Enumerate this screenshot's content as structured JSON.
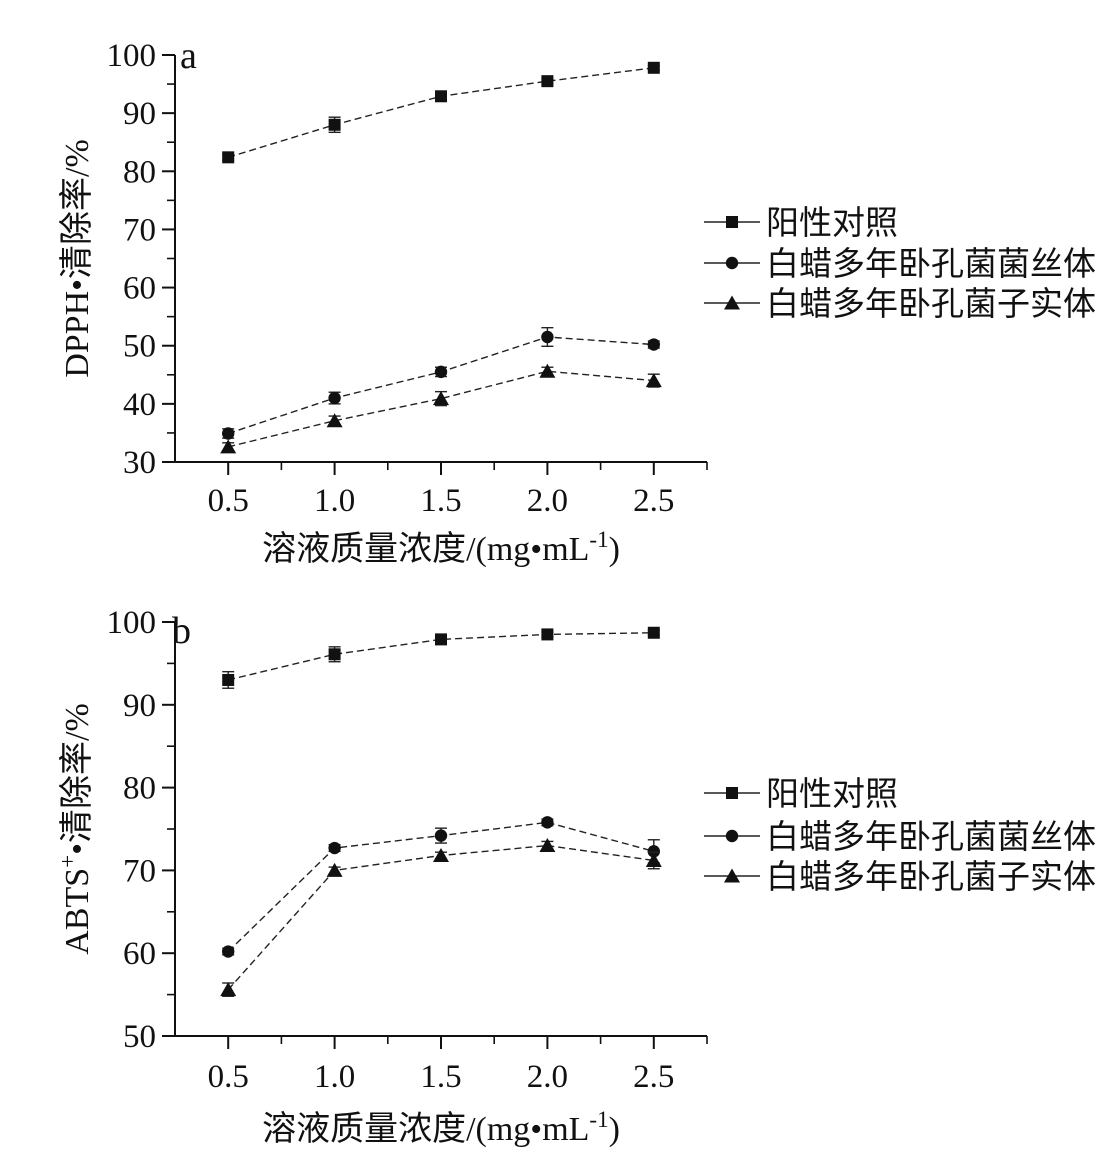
{
  "figure": {
    "background": "#ffffff",
    "ink": "#111111",
    "line_color": "#222222"
  },
  "chart_data": [
    {
      "type": "line",
      "panel_label": "a",
      "title": "",
      "xlabel": "溶液质量浓度/(mg•mL-1)",
      "xlabel_parts": {
        "pre": "溶液质量浓度/(mg•mL",
        "sup": "-1",
        "post": ")"
      },
      "ylabel": "DPPH•清除率/%",
      "ylabel_parts": {
        "pre": "DPPH",
        "sup": "",
        "post": "•清除率/%"
      },
      "x": [
        0.5,
        1.0,
        1.5,
        2.0,
        2.5
      ],
      "xticks": [
        "0.5",
        "1.0",
        "1.5",
        "2.0",
        "2.5"
      ],
      "yticks": [
        30,
        40,
        50,
        60,
        70,
        80,
        90,
        100
      ],
      "xlim": [
        0.25,
        2.75
      ],
      "ylim": [
        30,
        100
      ],
      "grid": false,
      "legend_position": "right-center",
      "series": [
        {
          "name": "阳性对照",
          "marker": "square",
          "values": [
            82.4,
            88.0,
            92.9,
            95.5,
            97.8
          ],
          "errors": [
            0.5,
            1.3,
            0.5,
            0.4,
            0.4
          ]
        },
        {
          "name": "白蜡多年卧孔菌菌丝体",
          "marker": "circle",
          "values": [
            34.9,
            41.0,
            45.5,
            51.5,
            50.2
          ],
          "errors": [
            0.8,
            1.0,
            0.8,
            1.6,
            0.6
          ]
        },
        {
          "name": "白蜡多年卧孔菌子实体",
          "marker": "triangle",
          "values": [
            32.6,
            37.1,
            40.9,
            45.6,
            44.0
          ],
          "errors": [
            0.7,
            0.8,
            1.2,
            0.7,
            1.1
          ]
        }
      ]
    },
    {
      "type": "line",
      "panel_label": "b",
      "title": "",
      "xlabel": "溶液质量浓度/(mg•mL-1)",
      "xlabel_parts": {
        "pre": "溶液质量浓度/(mg•mL",
        "sup": "-1",
        "post": ")"
      },
      "ylabel": "ABTS+•清除率/%",
      "ylabel_parts": {
        "pre": "ABTS",
        "sup": "+",
        "post": "•清除率/%"
      },
      "x": [
        0.5,
        1.0,
        1.5,
        2.0,
        2.5
      ],
      "xticks": [
        "0.5",
        "1.0",
        "1.5",
        "2.0",
        "2.5"
      ],
      "yticks": [
        50,
        60,
        70,
        80,
        90,
        100
      ],
      "xlim": [
        0.25,
        2.75
      ],
      "ylim": [
        50,
        100
      ],
      "grid": false,
      "legend_position": "right-center",
      "series": [
        {
          "name": "阳性对照",
          "marker": "square",
          "values": [
            93.0,
            96.1,
            97.9,
            98.5,
            98.7
          ],
          "errors": [
            1.0,
            0.9,
            0.3,
            0.3,
            0.3
          ]
        },
        {
          "name": "白蜡多年卧孔菌菌丝体",
          "marker": "circle",
          "values": [
            60.2,
            72.7,
            74.2,
            75.8,
            72.3
          ],
          "errors": [
            0.4,
            0.4,
            0.9,
            0.4,
            1.4
          ]
        },
        {
          "name": "白蜡多年卧孔菌子实体",
          "marker": "triangle",
          "values": [
            55.6,
            70.0,
            71.8,
            73.0,
            71.2
          ],
          "errors": [
            0.8,
            0.4,
            0.4,
            0.5,
            1.0
          ]
        }
      ]
    }
  ]
}
